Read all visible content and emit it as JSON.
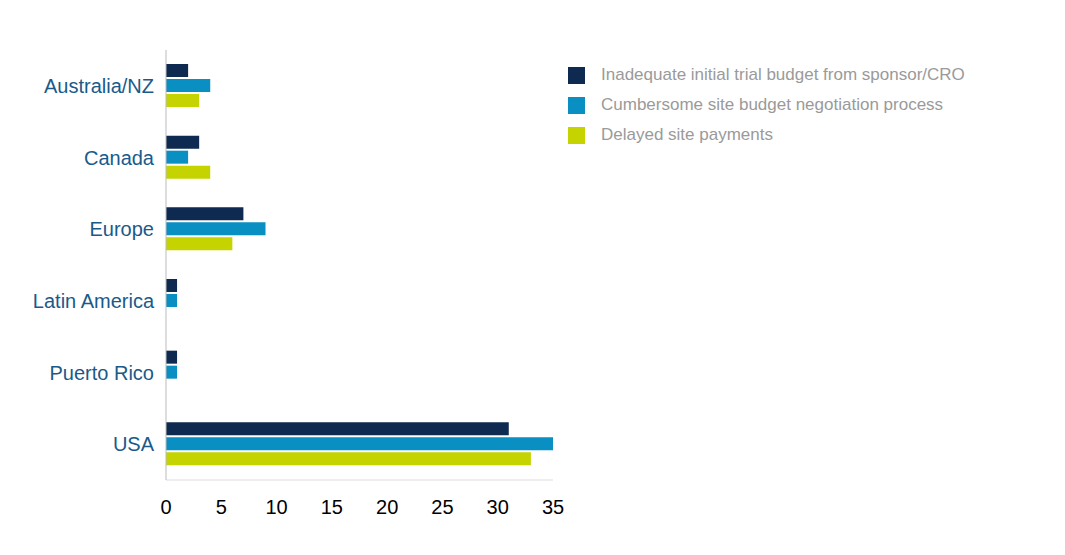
{
  "chart_data": {
    "type": "bar",
    "orientation": "horizontal",
    "categories": [
      "Australia/NZ",
      "Canada",
      "Europe",
      "Latin America",
      "Puerto Rico",
      "USA"
    ],
    "series": [
      {
        "name": "Inadequate initial trial budget from sponsor/CRO",
        "color": "#0e2a50",
        "values": [
          2,
          3,
          7,
          1,
          1,
          31
        ]
      },
      {
        "name": "Cumbersome site budget negotiation process",
        "color": "#0a8fc2",
        "values": [
          4,
          2,
          9,
          1,
          1,
          35
        ]
      },
      {
        "name": "Delayed site payments",
        "color": "#c5d300",
        "values": [
          3,
          4,
          6,
          0,
          0,
          33
        ]
      }
    ],
    "xlim": [
      0,
      35
    ],
    "xticks": [
      0,
      5,
      10,
      15,
      20,
      25,
      30,
      35
    ],
    "grid": false,
    "legend": "top-right"
  }
}
